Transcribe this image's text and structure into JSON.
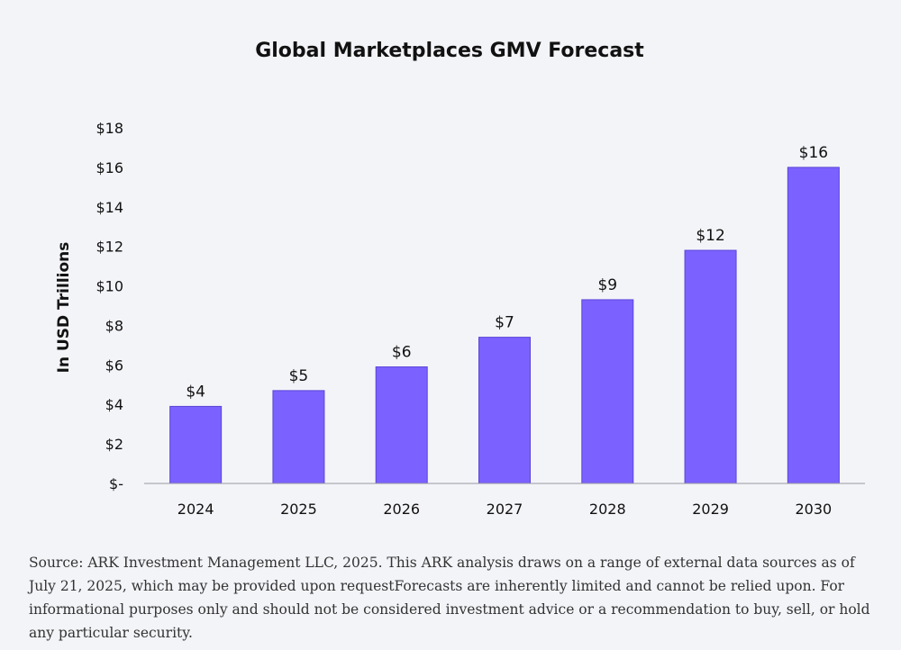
{
  "chart_data": {
    "type": "bar",
    "title": "Global Marketplaces GMV Forecast",
    "ylabel": "In USD Trillions",
    "xlabel": "",
    "categories": [
      "2024",
      "2025",
      "2026",
      "2027",
      "2028",
      "2029",
      "2030"
    ],
    "values": [
      3.9,
      4.7,
      5.9,
      7.4,
      9.3,
      11.8,
      16.0
    ],
    "data_labels": [
      "$4",
      "$5",
      "$6",
      "$7",
      "$9",
      "$12",
      "$16"
    ],
    "ylim": [
      0,
      18
    ],
    "yticks": [
      0,
      2,
      4,
      6,
      8,
      10,
      12,
      14,
      16,
      18
    ],
    "ytick_labels": [
      "$-",
      "$2",
      "$4",
      "$6",
      "$8",
      "$10",
      "$12",
      "$14",
      "$16",
      "$18"
    ],
    "grid": false,
    "bar_color": "#7b61ff"
  },
  "source_note": "Source: ARK Investment Management LLC, 2025. This ARK analysis draws on a range of external data sources as of July 21, 2025, which may be provided upon requestForecasts are inherently limited and cannot be relied upon. For informational purposes only and should not be considered investment advice or a recommendation to buy, sell, or hold any particular security."
}
